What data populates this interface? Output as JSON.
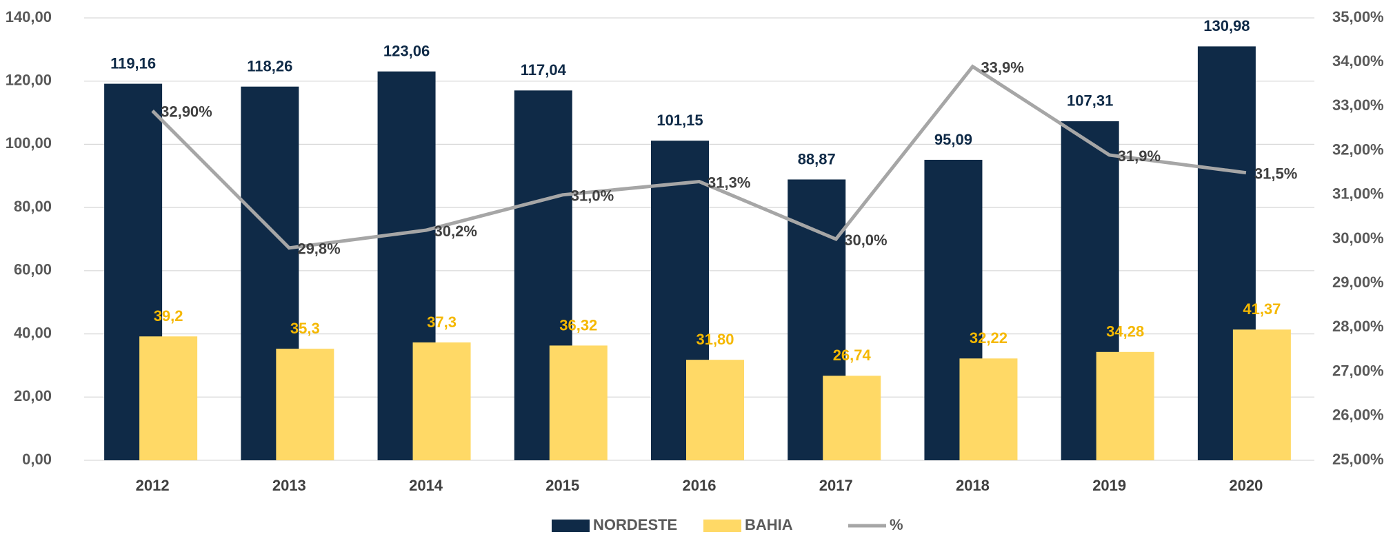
{
  "chart_data": {
    "type": "bar",
    "categories": [
      "2012",
      "2013",
      "2014",
      "2015",
      "2016",
      "2017",
      "2018",
      "2019",
      "2020"
    ],
    "series": [
      {
        "name": "NORDESTE",
        "color": "#0f2a47",
        "values": [
          119.16,
          118.26,
          123.06,
          117.04,
          101.15,
          88.87,
          95.09,
          107.31,
          130.98
        ],
        "value_labels": [
          "119,16",
          "118,26",
          "123,06",
          "117,04",
          "101,15",
          "88,87",
          "95,09",
          "107,31",
          "130,98"
        ]
      },
      {
        "name": "BAHIA",
        "color": "#ffd966",
        "values": [
          39.2,
          35.3,
          37.3,
          36.32,
          31.8,
          26.74,
          32.22,
          34.28,
          41.37
        ],
        "value_labels": [
          "39,2",
          "35,3",
          "37,3",
          "36,32",
          "31,80",
          "26,74",
          "32,22",
          "34,28",
          "41,37"
        ]
      },
      {
        "name": "%",
        "color": "#a6a6a6",
        "type": "line",
        "axis": "y2",
        "values": [
          32.9,
          29.8,
          30.2,
          31.0,
          31.3,
          30.0,
          33.9,
          31.9,
          31.5
        ],
        "value_labels": [
          "32,90%",
          "29,8%",
          "30,2%",
          "31,0%",
          "31,3%",
          "30,0%",
          "33,9%",
          "31,9%",
          "31,5%"
        ]
      }
    ],
    "ylim": [
      0,
      140
    ],
    "yticks": [
      {
        "value": 0,
        "label": "0,00"
      },
      {
        "value": 20,
        "label": "20,00"
      },
      {
        "value": 40,
        "label": "40,00"
      },
      {
        "value": 60,
        "label": "60,00"
      },
      {
        "value": 80,
        "label": "80,00"
      },
      {
        "value": 100,
        "label": "100,00"
      },
      {
        "value": 120,
        "label": "120,00"
      },
      {
        "value": 140,
        "label": "140,00"
      }
    ],
    "y2lim": [
      25,
      35
    ],
    "y2ticks": [
      {
        "value": 25,
        "label": "25,00%"
      },
      {
        "value": 26,
        "label": "26,00%"
      },
      {
        "value": 27,
        "label": "27,00%"
      },
      {
        "value": 28,
        "label": "28,00%"
      },
      {
        "value": 29,
        "label": "29,00%"
      },
      {
        "value": 30,
        "label": "30,00%"
      },
      {
        "value": 31,
        "label": "31,00%"
      },
      {
        "value": 32,
        "label": "32,00%"
      },
      {
        "value": 33,
        "label": "33,00%"
      },
      {
        "value": 34,
        "label": "34,00%"
      },
      {
        "value": 35,
        "label": "35,00%"
      }
    ],
    "grid": true,
    "legend": "bottom"
  }
}
